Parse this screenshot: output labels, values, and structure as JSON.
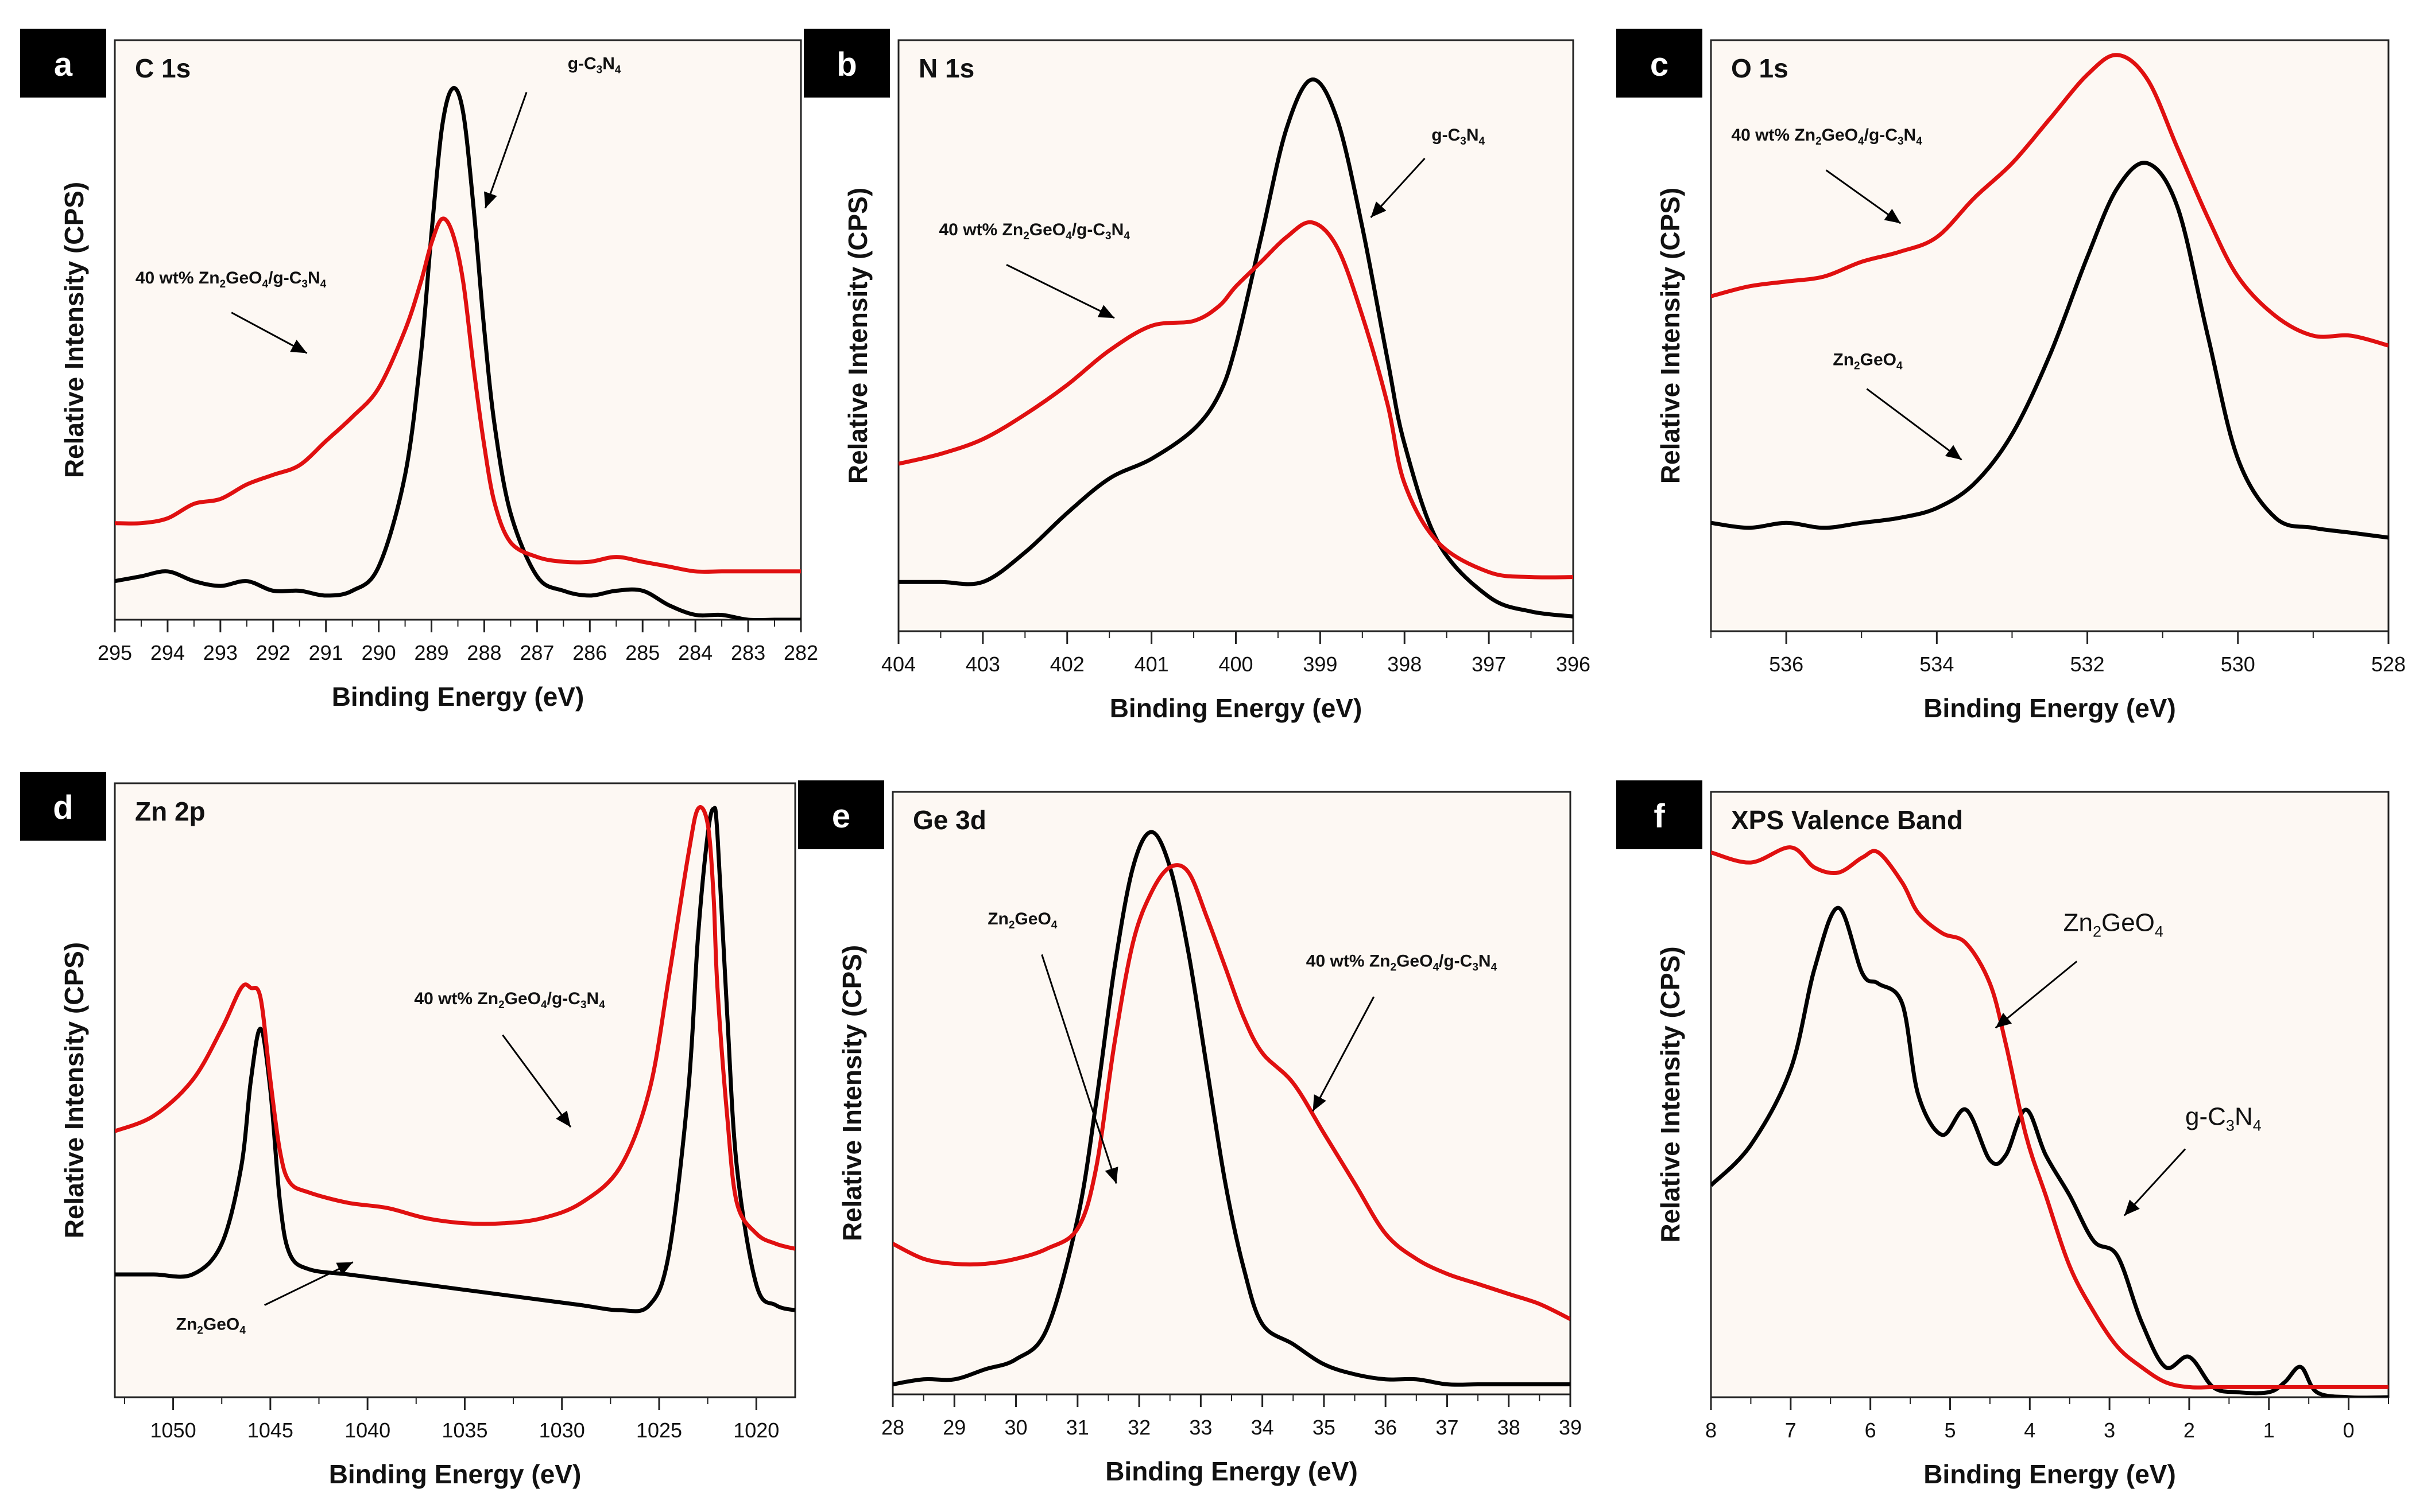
{
  "chart_data": [
    {
      "id": "a",
      "type": "line",
      "badge": "a",
      "title": "C 1s",
      "xlabel": "Binding Energy (eV)",
      "ylabel": "Relative Intensity (CPS)",
      "xlim": [
        295,
        282
      ],
      "ylim": [
        0,
        1.2
      ],
      "xticks": [
        295,
        294,
        293,
        292,
        291,
        290,
        289,
        288,
        287,
        286,
        285,
        284,
        283,
        282
      ],
      "annotations": [
        {
          "text": "g-C3N4",
          "color": "#000000"
        },
        {
          "text": "40 wt% Zn2GeO4/g-C3N4",
          "color": "#000000"
        }
      ],
      "series": [
        {
          "name": "g-C3N4",
          "color": "#000000",
          "x": [
            295,
            294.5,
            294,
            293.5,
            293,
            292.5,
            292,
            291.5,
            291,
            290.5,
            290,
            289.5,
            289.2,
            289,
            288.8,
            288.6,
            288.4,
            288.2,
            288,
            287.8,
            287.5,
            287,
            286.5,
            286,
            285.5,
            285,
            284.5,
            284,
            283.5,
            283,
            282.5,
            282
          ],
          "y": [
            0.08,
            0.09,
            0.1,
            0.08,
            0.07,
            0.08,
            0.06,
            0.06,
            0.05,
            0.06,
            0.11,
            0.3,
            0.55,
            0.8,
            1.02,
            1.1,
            1.05,
            0.85,
            0.6,
            0.4,
            0.22,
            0.09,
            0.06,
            0.05,
            0.06,
            0.06,
            0.03,
            0.01,
            0.01,
            0.0,
            0.0,
            0.0
          ]
        },
        {
          "name": "40 wt% Zn2GeO4/g-C3N4",
          "color": "#e01010",
          "x": [
            295,
            294.5,
            294,
            293.5,
            293,
            292.5,
            292,
            291.5,
            291,
            290.5,
            290,
            289.5,
            289.2,
            289,
            288.8,
            288.6,
            288.4,
            288.2,
            288,
            287.8,
            287.5,
            287,
            286.5,
            286,
            285.5,
            285,
            284.5,
            284,
            283.5,
            283,
            282.5,
            282
          ],
          "y": [
            0.2,
            0.2,
            0.21,
            0.24,
            0.25,
            0.28,
            0.3,
            0.32,
            0.37,
            0.42,
            0.48,
            0.6,
            0.7,
            0.78,
            0.83,
            0.8,
            0.7,
            0.52,
            0.36,
            0.24,
            0.16,
            0.13,
            0.12,
            0.12,
            0.13,
            0.12,
            0.11,
            0.1,
            0.1,
            0.1,
            0.1,
            0.1
          ]
        }
      ]
    },
    {
      "id": "b",
      "type": "line",
      "badge": "b",
      "title": "N 1s",
      "xlabel": "Binding Energy (eV)",
      "ylabel": "Relative Intensity (CPS)",
      "xlim": [
        404,
        396
      ],
      "ylim": [
        0,
        1.2
      ],
      "xticks": [
        404,
        403,
        402,
        401,
        400,
        399,
        398,
        397,
        396
      ],
      "annotations": [
        {
          "text": "g-C3N4",
          "color": "#000000"
        },
        {
          "text": "40 wt% Zn2GeO4/g-C3N4",
          "color": "#000000"
        }
      ],
      "series": [
        {
          "name": "g-C3N4",
          "color": "#000000",
          "x": [
            404,
            403.5,
            403,
            402.5,
            402,
            401.5,
            401,
            400.5,
            400.2,
            400,
            399.7,
            399.4,
            399.1,
            398.8,
            398.5,
            398.2,
            398,
            397.6,
            397,
            396.5,
            396
          ],
          "y": [
            0.1,
            0.1,
            0.1,
            0.16,
            0.24,
            0.31,
            0.35,
            0.41,
            0.48,
            0.58,
            0.8,
            1.02,
            1.12,
            1.04,
            0.82,
            0.55,
            0.38,
            0.18,
            0.07,
            0.04,
            0.03
          ]
        },
        {
          "name": "40 wt% Zn2GeO4/g-C3N4",
          "color": "#e01010",
          "x": [
            404,
            403.5,
            403,
            402.5,
            402,
            401.5,
            401,
            400.5,
            400.2,
            400,
            399.7,
            399.4,
            399.1,
            398.8,
            398.5,
            398.2,
            398,
            397.6,
            397,
            396.5,
            396
          ],
          "y": [
            0.34,
            0.36,
            0.39,
            0.44,
            0.5,
            0.57,
            0.62,
            0.63,
            0.66,
            0.7,
            0.75,
            0.8,
            0.83,
            0.78,
            0.64,
            0.46,
            0.3,
            0.18,
            0.12,
            0.11,
            0.11
          ]
        }
      ]
    },
    {
      "id": "c",
      "type": "line",
      "badge": "c",
      "title": "O 1s",
      "xlabel": "Binding Energy (eV)",
      "ylabel": "Relative Intensity (CPS)",
      "xlim": [
        537,
        528
      ],
      "ylim": [
        0,
        1.2
      ],
      "xticks": [
        536,
        534,
        532,
        530,
        528
      ],
      "annotations": [
        {
          "text": "40 wt% Zn2GeO4/g-C3N4",
          "color": "#000000"
        },
        {
          "text": "Zn2GeO4",
          "color": "#000000"
        }
      ],
      "series": [
        {
          "name": "Zn2GeO4",
          "color": "#000000",
          "x": [
            537,
            536.5,
            536,
            535.5,
            535,
            534.5,
            534,
            533.5,
            533,
            532.5,
            532,
            531.6,
            531.2,
            530.8,
            530.4,
            530,
            529.5,
            529,
            528.5,
            528
          ],
          "y": [
            0.22,
            0.21,
            0.22,
            0.21,
            0.22,
            0.23,
            0.25,
            0.3,
            0.4,
            0.56,
            0.76,
            0.9,
            0.95,
            0.86,
            0.6,
            0.35,
            0.23,
            0.21,
            0.2,
            0.19
          ]
        },
        {
          "name": "40 wt% Zn2GeO4/g-C3N4",
          "color": "#e01010",
          "x": [
            537,
            536.5,
            536,
            535.5,
            535,
            534.5,
            534,
            533.5,
            533,
            532.5,
            532,
            531.6,
            531.2,
            530.8,
            530.4,
            530,
            529.5,
            529,
            528.5,
            528
          ],
          "y": [
            0.68,
            0.7,
            0.71,
            0.72,
            0.75,
            0.77,
            0.8,
            0.88,
            0.95,
            1.04,
            1.13,
            1.17,
            1.12,
            0.98,
            0.84,
            0.72,
            0.64,
            0.6,
            0.6,
            0.58
          ]
        }
      ]
    },
    {
      "id": "d",
      "type": "line",
      "badge": "d",
      "title": "Zn 2p",
      "xlabel": "Binding Energy (eV)",
      "ylabel": "Relative Intensity (CPS)",
      "xlim": [
        1053,
        1018
      ],
      "ylim": [
        0,
        1.2
      ],
      "xticks": [
        1050,
        1045,
        1040,
        1035,
        1030,
        1025,
        1020
      ],
      "annotations": [
        {
          "text": "40 wt% Zn2GeO4/g-C3N4",
          "color": "#000000"
        },
        {
          "text": "Zn2GeO4",
          "color": "#000000"
        }
      ],
      "series": [
        {
          "name": "Zn2GeO4",
          "color": "#000000",
          "x": [
            1053,
            1051,
            1049,
            1047.5,
            1046.5,
            1046,
            1045.5,
            1045,
            1044.5,
            1044,
            1043,
            1041,
            1039,
            1037,
            1035,
            1033,
            1031,
            1029,
            1027,
            1025.5,
            1024.5,
            1023.5,
            1023,
            1022.5,
            1022.2,
            1022,
            1021.5,
            1021,
            1020,
            1019,
            1018
          ],
          "y": [
            0.24,
            0.24,
            0.24,
            0.3,
            0.45,
            0.62,
            0.72,
            0.6,
            0.38,
            0.28,
            0.25,
            0.24,
            0.23,
            0.22,
            0.21,
            0.2,
            0.19,
            0.18,
            0.17,
            0.18,
            0.28,
            0.6,
            0.9,
            1.1,
            1.15,
            1.1,
            0.75,
            0.45,
            0.22,
            0.18,
            0.17
          ]
        },
        {
          "name": "40 wt% Zn2GeO4/g-C3N4",
          "color": "#e01010",
          "x": [
            1053,
            1051,
            1049,
            1047.5,
            1046.5,
            1046,
            1045.5,
            1045,
            1044.5,
            1044,
            1043,
            1041,
            1039,
            1037,
            1035,
            1033,
            1031,
            1029,
            1027,
            1025.5,
            1024.5,
            1023.5,
            1023,
            1022.5,
            1022.2,
            1022,
            1021.5,
            1021,
            1020,
            1019,
            1018
          ],
          "y": [
            0.52,
            0.55,
            0.62,
            0.72,
            0.8,
            0.8,
            0.78,
            0.62,
            0.48,
            0.42,
            0.4,
            0.38,
            0.37,
            0.35,
            0.34,
            0.34,
            0.35,
            0.38,
            0.45,
            0.6,
            0.82,
            1.06,
            1.15,
            1.12,
            0.98,
            0.8,
            0.55,
            0.38,
            0.32,
            0.3,
            0.29
          ]
        }
      ]
    },
    {
      "id": "e",
      "type": "line",
      "badge": "e",
      "title": "Ge 3d",
      "xlabel": "Binding Energy (eV)",
      "ylabel": "Relative Intensity (CPS)",
      "xlim": [
        28,
        39
      ],
      "ylim": [
        0,
        1.2
      ],
      "xticks": [
        28,
        29,
        30,
        31,
        32,
        33,
        34,
        35,
        36,
        37,
        38,
        39
      ],
      "annotations": [
        {
          "text": "Zn2GeO4",
          "color": "#000000"
        },
        {
          "text": "40 wt% Zn2GeO4/g-C3N4",
          "color": "#000000"
        }
      ],
      "series": [
        {
          "name": "Zn2GeO4",
          "color": "#000000",
          "x": [
            28,
            28.5,
            29,
            29.5,
            30,
            30.5,
            31,
            31.3,
            31.6,
            31.9,
            32.2,
            32.5,
            32.8,
            33.1,
            33.4,
            33.7,
            34,
            34.5,
            35,
            35.5,
            36,
            36.5,
            37,
            37.5,
            38,
            38.5,
            39
          ],
          "y": [
            0.02,
            0.03,
            0.03,
            0.05,
            0.07,
            0.13,
            0.35,
            0.58,
            0.85,
            1.05,
            1.12,
            1.05,
            0.88,
            0.65,
            0.42,
            0.25,
            0.14,
            0.1,
            0.06,
            0.04,
            0.03,
            0.03,
            0.02,
            0.02,
            0.02,
            0.02,
            0.02
          ]
        },
        {
          "name": "40 wt% Zn2GeO4/g-C3N4",
          "color": "#e01010",
          "x": [
            28,
            28.5,
            29,
            29.5,
            30,
            30.5,
            31,
            31.3,
            31.6,
            31.9,
            32.2,
            32.5,
            32.8,
            33.1,
            33.4,
            33.7,
            34,
            34.5,
            35,
            35.5,
            36,
            36.5,
            37,
            37.5,
            38,
            38.5,
            39
          ],
          "y": [
            0.3,
            0.27,
            0.26,
            0.26,
            0.27,
            0.29,
            0.33,
            0.45,
            0.7,
            0.9,
            1.0,
            1.05,
            1.04,
            0.95,
            0.85,
            0.75,
            0.68,
            0.62,
            0.52,
            0.42,
            0.32,
            0.27,
            0.24,
            0.22,
            0.2,
            0.18,
            0.15
          ]
        }
      ]
    },
    {
      "id": "f",
      "type": "line",
      "badge": "f",
      "title": "XPS Valence Band",
      "xlabel": "Binding Energy (eV)",
      "ylabel": "Relative Intensity (CPS)",
      "xlim": [
        8,
        -0.5
      ],
      "ylim": [
        0,
        1.2
      ],
      "xticks": [
        8,
        7,
        6,
        5,
        4,
        3,
        2,
        1,
        0
      ],
      "annotations": [
        {
          "text": "Zn2GeO4",
          "color": "#000000"
        },
        {
          "text": "g-C3N4",
          "color": "#000000"
        }
      ],
      "series": [
        {
          "name": "g-C3N4",
          "color": "#000000",
          "x": [
            8,
            7.5,
            7,
            6.7,
            6.4,
            6.1,
            5.9,
            5.6,
            5.4,
            5.1,
            4.8,
            4.5,
            4.3,
            4.05,
            3.8,
            3.5,
            3.2,
            2.9,
            2.6,
            2.3,
            2.0,
            1.7,
            1.4,
            1.0,
            0.8,
            0.6,
            0.4,
            0.0,
            -0.5
          ],
          "y": [
            0.42,
            0.5,
            0.65,
            0.85,
            0.97,
            0.84,
            0.82,
            0.78,
            0.6,
            0.52,
            0.57,
            0.47,
            0.48,
            0.57,
            0.48,
            0.4,
            0.31,
            0.28,
            0.15,
            0.06,
            0.08,
            0.02,
            0.01,
            0.01,
            0.03,
            0.06,
            0.01,
            0.0,
            0.0
          ]
        },
        {
          "name": "Zn2GeO4",
          "color": "#e01010",
          "x": [
            8,
            7.5,
            7,
            6.7,
            6.4,
            6.1,
            5.9,
            5.6,
            5.4,
            5.1,
            4.8,
            4.5,
            4.3,
            4.05,
            3.8,
            3.5,
            3.2,
            2.9,
            2.6,
            2.3,
            2.0,
            1.7,
            1.4,
            1.0,
            0.8,
            0.6,
            0.4,
            0.0,
            -0.5
          ],
          "y": [
            1.08,
            1.06,
            1.09,
            1.05,
            1.04,
            1.07,
            1.08,
            1.02,
            0.96,
            0.92,
            0.9,
            0.82,
            0.7,
            0.52,
            0.4,
            0.26,
            0.17,
            0.1,
            0.06,
            0.03,
            0.02,
            0.02,
            0.02,
            0.02,
            0.02,
            0.02,
            0.02,
            0.02,
            0.02
          ]
        }
      ]
    }
  ]
}
